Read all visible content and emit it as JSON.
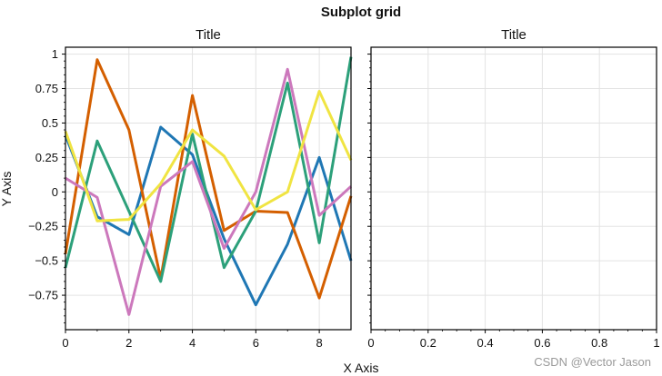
{
  "figure": {
    "suptitle": "Subplot grid",
    "xlabel": "X Axis",
    "ylabel": "Y Axis",
    "watermark": "CSDN @Vector Jason"
  },
  "chart_data": [
    {
      "type": "line",
      "title": "Title",
      "xlabel": "X Axis",
      "ylabel": "Y Axis",
      "xlim": [
        0,
        9
      ],
      "ylim": [
        -1,
        1.05
      ],
      "grid": true,
      "x": [
        0,
        1,
        2,
        3,
        4,
        5,
        6,
        7,
        8,
        9
      ],
      "xticks": [
        "0",
        "2",
        "4",
        "6",
        "8"
      ],
      "xtick_values": [
        0,
        2,
        4,
        6,
        8
      ],
      "yticks": [
        "1",
        "0.75",
        "0.5",
        "0.25",
        "0",
        "−0.25",
        "−0.5",
        "−0.75"
      ],
      "ytick_values": [
        1,
        0.75,
        0.5,
        0.25,
        0,
        -0.25,
        -0.5,
        -0.75
      ],
      "series": [
        {
          "color": "#1f77b4",
          "values": [
            0.41,
            -0.18,
            -0.31,
            0.47,
            0.27,
            -0.34,
            -0.82,
            -0.38,
            0.25,
            -0.5
          ]
        },
        {
          "color": "#d45f00",
          "values": [
            -0.45,
            0.96,
            0.45,
            -0.63,
            0.7,
            -0.28,
            -0.14,
            -0.15,
            -0.77,
            -0.03
          ]
        },
        {
          "color": "#2ca07a",
          "values": [
            -0.55,
            0.37,
            -0.14,
            -0.65,
            0.42,
            -0.55,
            -0.14,
            0.79,
            -0.37,
            0.98
          ]
        },
        {
          "color": "#cc78bc",
          "values": [
            0.1,
            -0.04,
            -0.89,
            0.04,
            0.22,
            -0.41,
            0.0,
            0.89,
            -0.17,
            0.04
          ]
        },
        {
          "color": "#f0e442",
          "values": [
            0.44,
            -0.21,
            -0.2,
            0.06,
            0.45,
            0.26,
            -0.13,
            0.0,
            0.73,
            0.23
          ]
        }
      ]
    },
    {
      "type": "line",
      "title": "Title",
      "xlim": [
        0,
        1
      ],
      "ylim": [
        -1,
        1.05
      ],
      "grid": true,
      "xticks": [
        "0",
        "0.2",
        "0.4",
        "0.6",
        "0.8",
        "1"
      ],
      "xtick_values": [
        0,
        0.2,
        0.4,
        0.6,
        0.8,
        1
      ],
      "series": []
    }
  ]
}
